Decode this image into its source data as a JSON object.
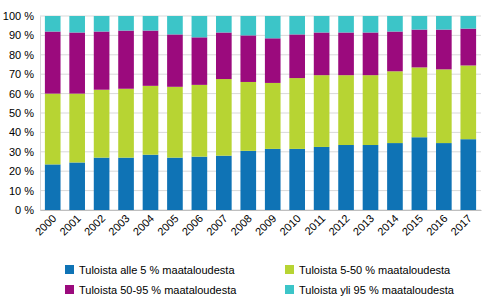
{
  "chart_data": {
    "type": "bar",
    "stacked": true,
    "grid": true,
    "legend": "bottom",
    "categories": [
      "2000",
      "2001",
      "2002",
      "2003",
      "2004",
      "2005",
      "2006",
      "2007",
      "2008",
      "2009",
      "2010",
      "2011",
      "2012",
      "2013",
      "2014",
      "2015",
      "2016",
      "2017"
    ],
    "series": [
      {
        "name": "Tuloista alle 5 % maataloudesta",
        "color": "#0f73b5",
        "values": [
          23.5,
          24.5,
          27,
          27,
          28.5,
          27,
          27.5,
          28,
          30.5,
          31.5,
          31.5,
          32.5,
          33.5,
          33.5,
          34.5,
          37.5,
          34.5,
          36.5
        ]
      },
      {
        "name": "Tuloista 5-50 % maataloudesta",
        "color": "#b7d433",
        "values": [
          36.5,
          35.5,
          35,
          35.5,
          35.5,
          36.5,
          37,
          39.5,
          35.5,
          34,
          36.5,
          37,
          36,
          36,
          37,
          36,
          38,
          38
        ]
      },
      {
        "name": "Tuloista 50-95 % maataloudesta",
        "color": "#9b0a7d",
        "values": [
          32,
          31.5,
          30,
          30,
          28.5,
          27,
          24.5,
          24,
          24,
          23,
          22.5,
          22,
          22,
          22,
          20.5,
          19.5,
          20.5,
          19
        ]
      },
      {
        "name": "Tuloista yli 95 % maataloudesta",
        "color": "#3cc5c8",
        "values": [
          8,
          8.5,
          8,
          7.5,
          7.5,
          9.5,
          11,
          8.5,
          10,
          11.5,
          9.5,
          8.5,
          8.5,
          8.5,
          8,
          7,
          7,
          6.5
        ]
      }
    ],
    "ylim": [
      0,
      100
    ],
    "yticks": [
      {
        "value": 0,
        "label": "0 %"
      },
      {
        "value": 10,
        "label": "10 %"
      },
      {
        "value": 20,
        "label": "20 %"
      },
      {
        "value": 30,
        "label": "30 %"
      },
      {
        "value": 40,
        "label": "40 %"
      },
      {
        "value": 50,
        "label": "50 %"
      },
      {
        "value": 60,
        "label": "60 %"
      },
      {
        "value": 70,
        "label": "70 %"
      },
      {
        "value": 80,
        "label": "80 %"
      },
      {
        "value": 90,
        "label": "90 %"
      },
      {
        "value": 100,
        "label": "100 %"
      }
    ]
  }
}
